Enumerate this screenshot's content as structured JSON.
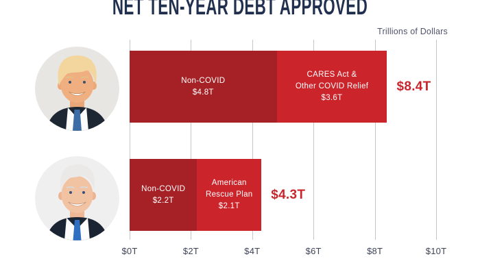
{
  "title": "NET TEN-YEAR DEBT APPROVED",
  "units_label": "Trillions of Dollars",
  "colors": {
    "non_covid_red": "#A62126",
    "covid_relief_red": "#CC242B",
    "total_label_red": "#C8262C",
    "title_navy": "#22304F",
    "axis_text": "#3E4358",
    "gridline_gray": "#C6C6C6"
  },
  "icons": {
    "row_0": "trump-portrait",
    "row_1": "biden-portrait"
  },
  "chart_data": {
    "type": "bar",
    "orientation": "horizontal",
    "stacked": true,
    "title": "NET TEN-YEAR DEBT APPROVED",
    "units": "Trillions of Dollars",
    "xlabel": "",
    "ylabel": "",
    "xlim": [
      0,
      10
    ],
    "x_tick_values": [
      0,
      2,
      4,
      6,
      8,
      10
    ],
    "x_tick_labels": [
      "$0T",
      "$2T",
      "$4T",
      "$6T",
      "$8T",
      "$10T"
    ],
    "grid": true,
    "legend": false,
    "rows": [
      {
        "portrait": "trump-portrait",
        "total": 8.4,
        "total_label": "$8.4T",
        "segments": [
          {
            "name": "Non-COVID",
            "value": 4.8,
            "value_label": "$4.8T",
            "color": "#A62126",
            "label_lines": [
              "Non-COVID",
              "$4.8T"
            ]
          },
          {
            "name": "CARES Act & Other COVID Relief",
            "value": 3.6,
            "value_label": "$3.6T",
            "color": "#CC242B",
            "label_lines": [
              "CARES Act &",
              "Other COVID Relief",
              "$3.6T"
            ]
          }
        ]
      },
      {
        "portrait": "biden-portrait",
        "total": 4.3,
        "total_label": "$4.3T",
        "segments": [
          {
            "name": "Non-COVID",
            "value": 2.2,
            "value_label": "$2.2T",
            "color": "#A62126",
            "label_lines": [
              "Non-COVID",
              "$2.2T"
            ]
          },
          {
            "name": "American Rescue Plan",
            "value": 2.1,
            "value_label": "$2.1T",
            "color": "#CC242B",
            "label_lines": [
              "American",
              "Rescue Plan",
              "$2.1T"
            ]
          }
        ]
      }
    ]
  }
}
